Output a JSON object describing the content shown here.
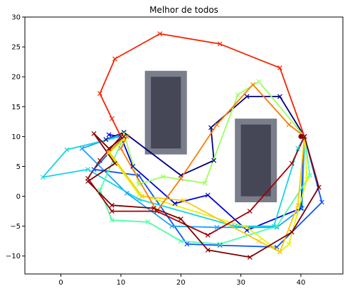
{
  "chart_data": {
    "type": "line",
    "title": "Melhor de todos",
    "xlabel": "",
    "ylabel": "",
    "xlim": [
      -6,
      47
    ],
    "ylim": [
      -13,
      30
    ],
    "xticks": [
      0,
      10,
      20,
      30,
      40
    ],
    "yticks": [
      -10,
      -5,
      0,
      5,
      10,
      15,
      20,
      25,
      30
    ],
    "grid": false,
    "legend": "none",
    "obstacles": [
      {
        "outer": {
          "x": [
            14,
            21
          ],
          "y": [
            7,
            21
          ]
        },
        "inner": {
          "x": [
            15,
            20
          ],
          "y": [
            8,
            20
          ]
        },
        "outer_color": "#7a7d8a",
        "inner_color": "#454757"
      },
      {
        "outer": {
          "x": [
            29,
            36
          ],
          "y": [
            -1,
            13
          ]
        },
        "inner": {
          "x": [
            30,
            35
          ],
          "y": [
            0,
            12
          ]
        },
        "outer_color": "#7a7d8a",
        "inner_color": "#454757"
      }
    ],
    "start_point": {
      "x": 40,
      "y": 10,
      "color": "#8b0010"
    },
    "series": [
      {
        "color": "#00007f",
        "x": [
          40.6,
          36.5,
          31,
          25,
          25.5,
          20,
          10.5,
          7.5
        ],
        "y": [
          10,
          16.7,
          16.7,
          11.5,
          6,
          3.5,
          10.7,
          9.5
        ]
      },
      {
        "color": "#0000dd",
        "x": [
          40.6,
          40,
          31,
          24.5,
          19,
          12,
          10,
          8
        ],
        "y": [
          10,
          -2,
          -5.7,
          0.2,
          -1.2,
          5,
          10,
          10.3
        ]
      },
      {
        "color": "#0a52ff",
        "x": [
          40.6,
          43.5,
          36,
          26.5,
          21,
          13,
          5.5,
          10.5
        ],
        "y": [
          10,
          -1,
          -8.5,
          -8.2,
          -8,
          3.5,
          4.5,
          10
        ]
      },
      {
        "color": "#1aa2ff",
        "x": [
          40.6,
          40.2,
          36,
          26,
          18.5,
          11,
          3.5,
          10.5
        ],
        "y": [
          10,
          -2,
          -5.2,
          -5.2,
          -5,
          0.5,
          8,
          10.5
        ]
      },
      {
        "color": "#16d4e5",
        "x": [
          40.6,
          39.5,
          35.5,
          29,
          13,
          4.5,
          -3,
          1,
          10
        ],
        "y": [
          10,
          8,
          -5,
          -5,
          -0.5,
          4.5,
          3.2,
          7.8,
          10
        ]
      },
      {
        "color": "#4dffab",
        "x": [
          40.6,
          41.5,
          36,
          26.5,
          20,
          14.5,
          8.5,
          6.5,
          10.5
        ],
        "y": [
          10,
          3.5,
          -5,
          -8,
          -7.5,
          -4.3,
          -4,
          1,
          10
        ]
      },
      {
        "color": "#9cff5c",
        "x": [
          40.6,
          33,
          29.5,
          24,
          17,
          13,
          10.5
        ],
        "y": [
          10,
          19.2,
          17,
          2.2,
          3.3,
          2,
          10.5
        ]
      },
      {
        "color": "#e1f500",
        "x": [
          40.6,
          41,
          38,
          36.5,
          31,
          13,
          8,
          11
        ],
        "y": [
          10,
          2.8,
          -8,
          -9.3,
          -5.2,
          0.3,
          7.2,
          10
        ]
      },
      {
        "color": "#ffc800",
        "x": [
          40.6,
          39.5,
          36.5,
          33,
          20.5,
          13.5,
          8,
          10.5
        ],
        "y": [
          10,
          -1.5,
          -9.3,
          -7.5,
          -0.7,
          0,
          7.5,
          10
        ]
      },
      {
        "color": "#ff7b00",
        "x": [
          40.6,
          38,
          32,
          26,
          20,
          16,
          10,
          11
        ],
        "y": [
          10,
          12,
          18.7,
          12,
          3,
          -2.5,
          8,
          10
        ]
      },
      {
        "color": "#f82300",
        "x": [
          40.6,
          36.5,
          26.5,
          16.5,
          9,
          6.5,
          8.5,
          10
        ],
        "y": [
          10,
          21.5,
          25.5,
          27.2,
          23,
          17.2,
          13,
          10
        ]
      },
      {
        "color": "#a00000",
        "x": [
          40.6,
          38.5,
          31.5,
          24.5,
          16,
          8.5,
          4.5,
          6.5,
          10
        ],
        "y": [
          10,
          5.5,
          -2.5,
          -6.5,
          -2.5,
          -2.5,
          3,
          6,
          10
        ]
      },
      {
        "color": "#7f0000",
        "x": [
          40.6,
          43,
          38.5,
          31.5,
          24.5,
          20,
          15.5,
          8.5,
          4.5,
          9,
          5.5,
          8,
          10.5
        ],
        "y": [
          10,
          1.5,
          -6,
          -10.2,
          -9,
          -3.8,
          -2,
          -1.5,
          2.5,
          5.5,
          10.5,
          8,
          10
        ]
      }
    ]
  }
}
